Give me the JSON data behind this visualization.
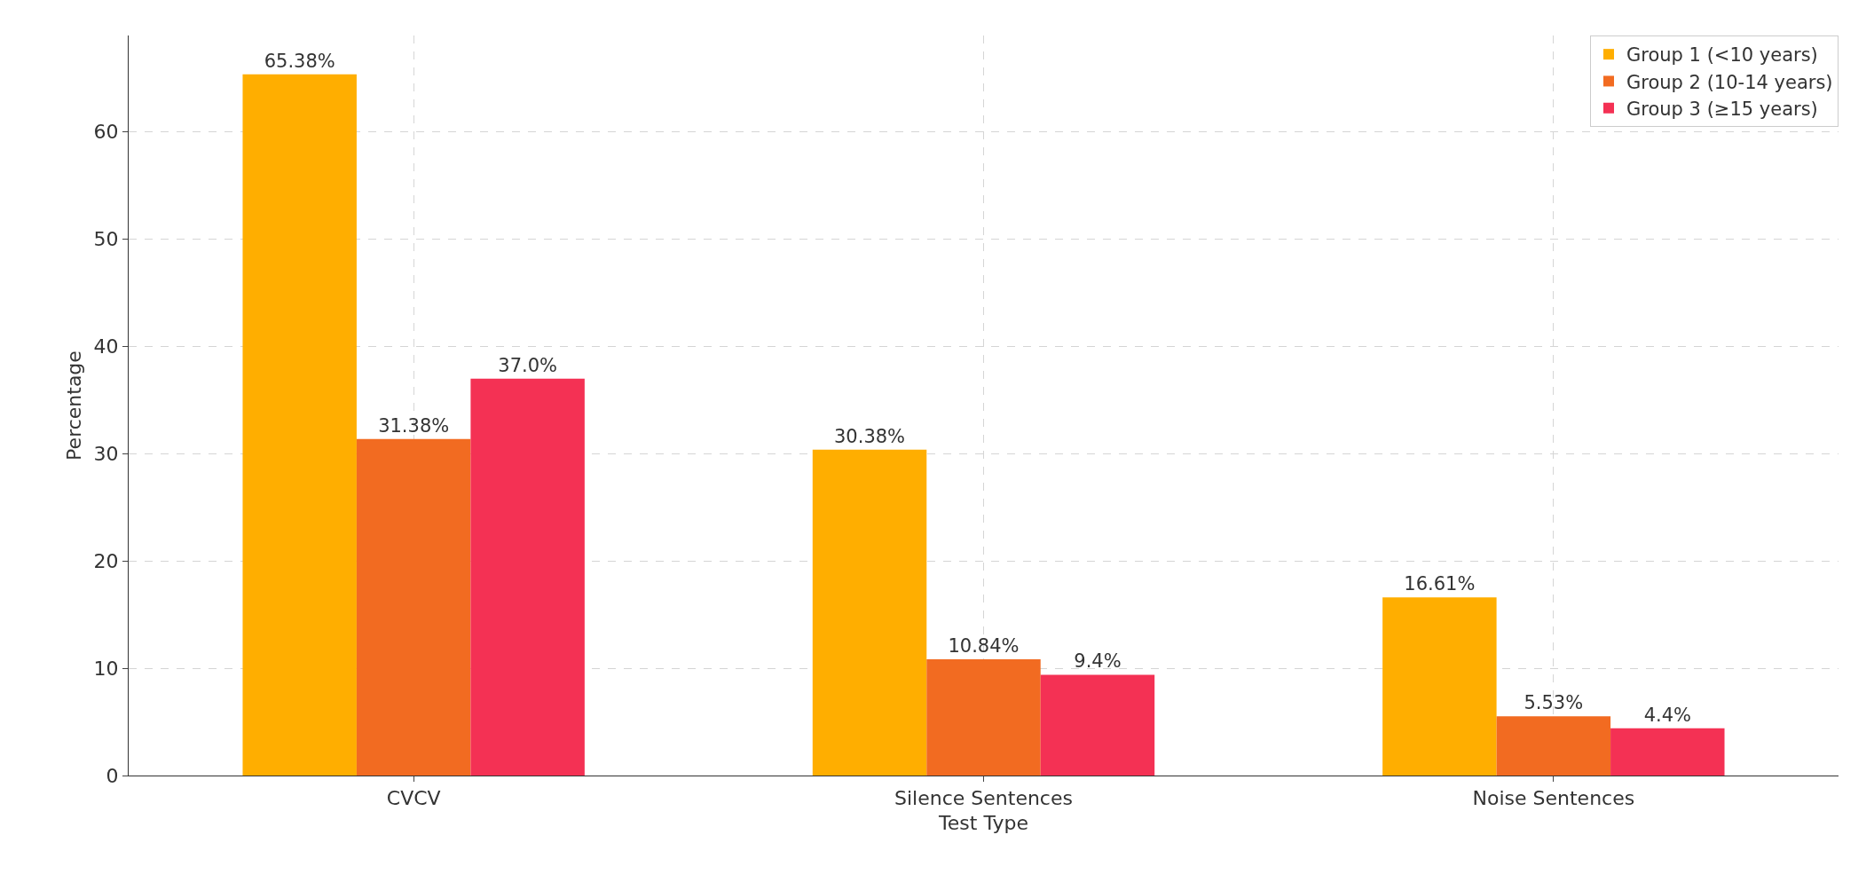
{
  "chart_data": {
    "type": "bar",
    "xlabel": "Test Type",
    "ylabel": "Percentage",
    "categories": [
      "CVCV",
      "Silence Sentences",
      "Noise Sentences"
    ],
    "series": [
      {
        "name": "Group 1 (<10 years)",
        "color": "#ffae00",
        "values": [
          65.38,
          30.38,
          16.61
        ],
        "value_labels": [
          "65.38%",
          "30.38%",
          "16.61%"
        ]
      },
      {
        "name": "Group 2 (10-14 years)",
        "color": "#f26b21",
        "values": [
          31.38,
          10.84,
          5.53
        ],
        "value_labels": [
          "31.38%",
          "10.84%",
          "5.53%"
        ]
      },
      {
        "name": "Group 3 (≥15 years)",
        "color": "#f43154",
        "values": [
          37.0,
          9.4,
          4.4
        ],
        "value_labels": [
          "37.0%",
          "9.4%",
          "4.4%"
        ]
      }
    ],
    "ylim": [
      0,
      69
    ],
    "yticks": [
      0,
      10,
      20,
      30,
      40,
      50,
      60
    ],
    "grid": true,
    "legend": "top right"
  }
}
